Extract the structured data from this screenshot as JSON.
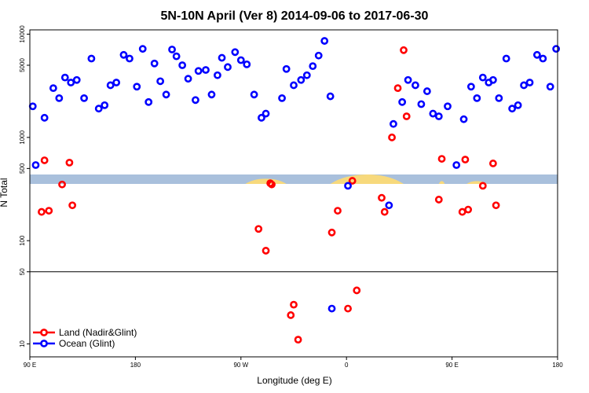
{
  "chart_data": {
    "type": "scatter",
    "title": "5N-10N April (Ver 8)   2014-09-06 to 2017-06-30",
    "xlabel": "Longitude (deg E)",
    "ylabel": "N Total",
    "x_scale": "linear",
    "y_scale": "log",
    "xlim": [
      0,
      360
    ],
    "ylim": [
      7.5,
      11000
    ],
    "x_ticks": [
      {
        "value": 0,
        "label": "90 E"
      },
      {
        "value": 72,
        "label": "180"
      },
      {
        "value": 144,
        "label": "90 W"
      },
      {
        "value": 216,
        "label": "0"
      },
      {
        "value": 288,
        "label": "90 E"
      },
      {
        "value": 360,
        "label": "180"
      }
    ],
    "y_ticks": [
      {
        "value": 10,
        "label": "10"
      },
      {
        "value": 50,
        "label": "50"
      },
      {
        "value": 100,
        "label": "100"
      },
      {
        "value": 500,
        "label": "500"
      },
      {
        "value": 1000,
        "label": "1000"
      },
      {
        "value": 5000,
        "label": "5000"
      },
      {
        "value": 10000,
        "label": "10000"
      }
    ],
    "reference_line": 50,
    "legend_position": "bottom-left",
    "series": [
      {
        "name": "Land (Nadir&Glint)",
        "color": "#ff0000",
        "points": [
          [
            8,
            190
          ],
          [
            10,
            600
          ],
          [
            13,
            195
          ],
          [
            22,
            350
          ],
          [
            27,
            570
          ],
          [
            29,
            220
          ],
          [
            156,
            130
          ],
          [
            161,
            80
          ],
          [
            164,
            360
          ],
          [
            165,
            350
          ],
          [
            178,
            19
          ],
          [
            180,
            24
          ],
          [
            183,
            11
          ],
          [
            206,
            120
          ],
          [
            210,
            195
          ],
          [
            217,
            22
          ],
          [
            220,
            380
          ],
          [
            223,
            33
          ],
          [
            240,
            260
          ],
          [
            242,
            190
          ],
          [
            247,
            1000
          ],
          [
            251,
            3000
          ],
          [
            255,
            7000
          ],
          [
            257,
            1600
          ],
          [
            279,
            250
          ],
          [
            281,
            620
          ],
          [
            295,
            190
          ],
          [
            297,
            610
          ],
          [
            299,
            200
          ],
          [
            309,
            340
          ],
          [
            316,
            560
          ],
          [
            318,
            220
          ]
        ]
      },
      {
        "name": "Ocean (Glint)",
        "color": "#0000ff",
        "points": [
          [
            2,
            2000
          ],
          [
            4,
            540
          ],
          [
            10,
            1550
          ],
          [
            16,
            3000
          ],
          [
            20,
            2400
          ],
          [
            24,
            3800
          ],
          [
            28,
            3400
          ],
          [
            32,
            3600
          ],
          [
            37,
            2400
          ],
          [
            42,
            5800
          ],
          [
            47,
            1900
          ],
          [
            51,
            2050
          ],
          [
            55,
            3200
          ],
          [
            59,
            3400
          ],
          [
            64,
            6300
          ],
          [
            68,
            5800
          ],
          [
            73,
            3100
          ],
          [
            77,
            7200
          ],
          [
            81,
            2200
          ],
          [
            85,
            5200
          ],
          [
            89,
            3500
          ],
          [
            93,
            2600
          ],
          [
            97,
            7100
          ],
          [
            100,
            6100
          ],
          [
            104,
            5000
          ],
          [
            108,
            3700
          ],
          [
            113,
            2300
          ],
          [
            115,
            4400
          ],
          [
            120,
            4500
          ],
          [
            124,
            2600
          ],
          [
            128,
            4000
          ],
          [
            131,
            5900
          ],
          [
            135,
            4800
          ],
          [
            140,
            6700
          ],
          [
            144,
            5600
          ],
          [
            148,
            5100
          ],
          [
            153,
            2600
          ],
          [
            158,
            1550
          ],
          [
            161,
            1700
          ],
          [
            172,
            2400
          ],
          [
            175,
            4600
          ],
          [
            180,
            3200
          ],
          [
            185,
            3600
          ],
          [
            189,
            4000
          ],
          [
            193,
            4900
          ],
          [
            197,
            6200
          ],
          [
            201,
            8600
          ],
          [
            205,
            2500
          ],
          [
            206,
            22
          ],
          [
            217,
            340
          ],
          [
            245,
            220
          ],
          [
            248,
            1350
          ],
          [
            254,
            2200
          ],
          [
            258,
            3600
          ],
          [
            263,
            3200
          ],
          [
            267,
            2100
          ],
          [
            271,
            2800
          ],
          [
            275,
            1700
          ],
          [
            279,
            1600
          ],
          [
            285,
            2000
          ],
          [
            291,
            540
          ],
          [
            296,
            1500
          ],
          [
            301,
            3100
          ],
          [
            305,
            2400
          ],
          [
            309,
            3800
          ],
          [
            313,
            3400
          ],
          [
            316,
            3600
          ],
          [
            320,
            2400
          ],
          [
            325,
            5800
          ],
          [
            329,
            1900
          ],
          [
            333,
            2050
          ],
          [
            337,
            3200
          ],
          [
            341,
            3400
          ],
          [
            346,
            6300
          ],
          [
            350,
            5800
          ],
          [
            355,
            3100
          ],
          [
            359,
            7200
          ]
        ]
      }
    ],
    "land_segments": [
      {
        "from": 147,
        "to": 175,
        "peak": 0.55
      },
      {
        "from": 205,
        "to": 255,
        "peak": 1.0
      },
      {
        "from": 279,
        "to": 283,
        "peak": 0.3
      },
      {
        "from": 298,
        "to": 312,
        "peak": 0.3
      }
    ]
  }
}
